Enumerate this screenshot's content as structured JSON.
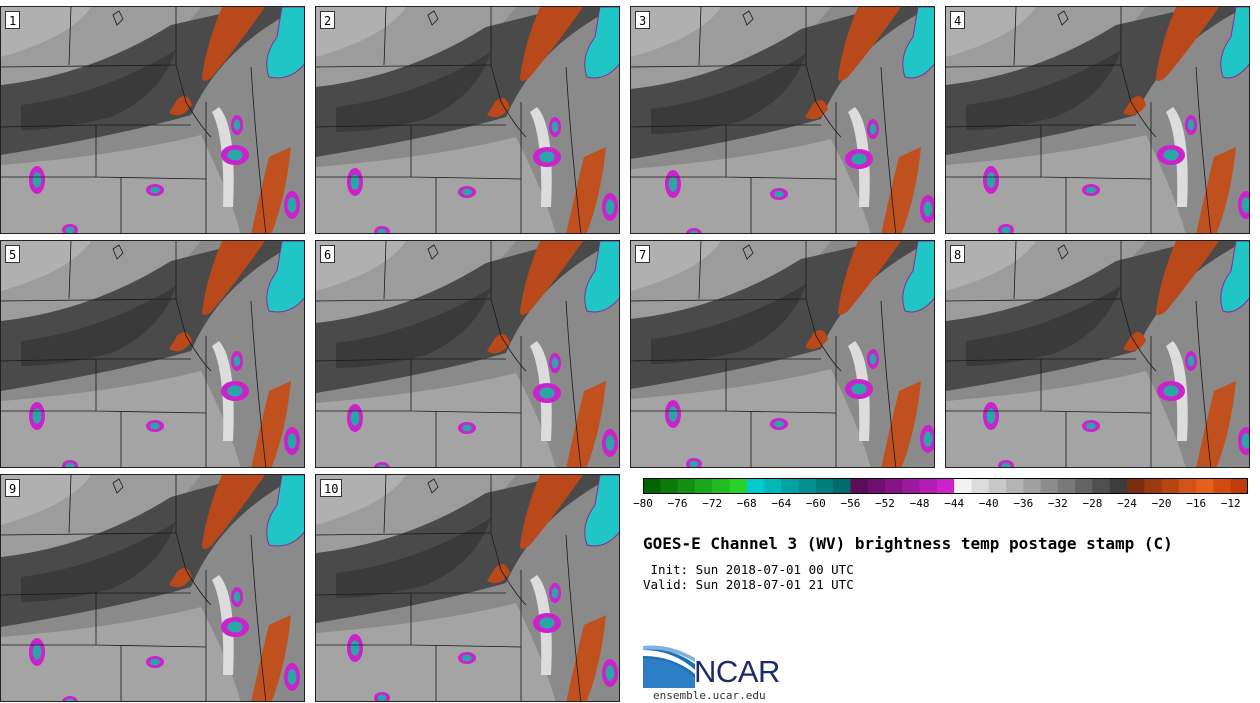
{
  "panels": [
    {
      "label": "1"
    },
    {
      "label": "2"
    },
    {
      "label": "3"
    },
    {
      "label": "4"
    },
    {
      "label": "5"
    },
    {
      "label": "6"
    },
    {
      "label": "7"
    },
    {
      "label": "8"
    },
    {
      "label": "9"
    },
    {
      "label": "10"
    }
  ],
  "colorbar": {
    "min": -80,
    "max": -10,
    "step": 2,
    "tick_labels": [
      "-80",
      "-76",
      "-72",
      "-68",
      "-64",
      "-60",
      "-56",
      "-52",
      "-48",
      "-44",
      "-40",
      "-36",
      "-32",
      "-28",
      "-24",
      "-20",
      "-16",
      "-12"
    ],
    "colors": [
      "#006400",
      "#0b7a0b",
      "#138f13",
      "#1aa51a",
      "#20bb20",
      "#26d326",
      "#00cccc",
      "#00b8b8",
      "#00a3a3",
      "#009090",
      "#007e7e",
      "#006b6b",
      "#5a0e5a",
      "#6f0f6f",
      "#861486",
      "#9c189c",
      "#b31cb3",
      "#cc22cc",
      "#f2f2f2",
      "#dcdcdc",
      "#c8c8c8",
      "#b4b4b4",
      "#a0a0a0",
      "#8c8c8c",
      "#787878",
      "#646464",
      "#505050",
      "#3c3c3c",
      "#7a2e10",
      "#9a3812",
      "#b84414",
      "#d15318",
      "#e5601a",
      "#d24a10",
      "#c03a0c"
    ]
  },
  "title": "GOES-E Channel 3 (WV) brightness temp postage stamp (C)",
  "init": " Init: Sun 2018-07-01 00 UTC",
  "valid": "Valid: Sun 2018-07-01 21 UTC",
  "logo": {
    "text": "NCAR",
    "url": "ensemble.ucar.edu"
  }
}
